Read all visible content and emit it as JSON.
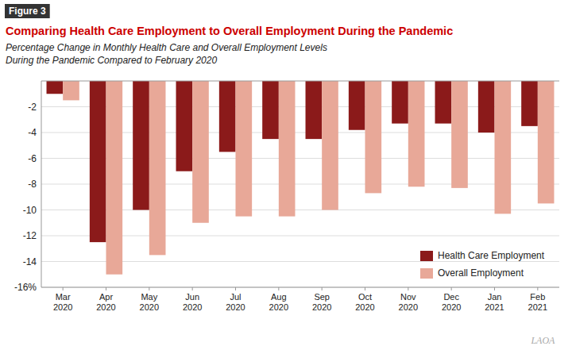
{
  "chart_data": {
    "type": "bar",
    "title": "Comparing Health Care Employment to Overall Employment During the Pandemic",
    "subtitle": [
      "Percentage Change in Monthly Health Care and Overall Employment Levels",
      "During the Pandemic Compared to February 2020"
    ],
    "annotations": [
      "Figure 3",
      "LAOA"
    ],
    "categories": [
      "Mar\n2020",
      "Apr\n2020",
      "May\n2020",
      "Jun\n2020",
      "Jul\n2020",
      "Aug\n2020",
      "Sep\n2020",
      "Oct\n2020",
      "Nov\n2020",
      "Dec\n2020",
      "Jan\n2021",
      "Feb\n2021"
    ],
    "series": [
      {
        "name": "Health Care Employment",
        "color": "#8B1A1A",
        "values": [
          -1.0,
          -12.5,
          -10.0,
          -7.0,
          -5.5,
          -4.5,
          -4.5,
          -3.8,
          -3.3,
          -3.3,
          -4.0,
          -3.5
        ]
      },
      {
        "name": "Overall Employment",
        "color": "#E8A898",
        "values": [
          -1.5,
          -15.0,
          -13.5,
          -11.0,
          -10.5,
          -10.5,
          -10.0,
          -8.7,
          -8.2,
          -8.3,
          -10.3,
          -9.5
        ]
      }
    ],
    "ylim": [
      -16,
      0
    ],
    "yticks": [
      -2,
      -4,
      -6,
      -8,
      -10,
      -12,
      -14,
      {
        "value": -16,
        "label": "-16%"
      }
    ],
    "grid": true,
    "legend": "lower right",
    "color": "#CC0000"
  }
}
